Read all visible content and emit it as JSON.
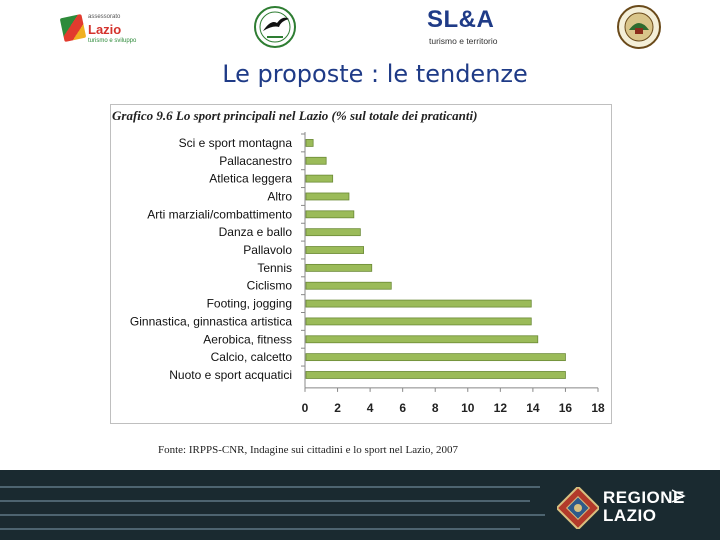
{
  "header": {
    "lazio_logo": {
      "small": "assessorato",
      "big": "Lazio",
      "sub": "turismo e sviluppo"
    },
    "sla_logo": {
      "big": "SL&A",
      "small": "turismo e territorio"
    }
  },
  "slide": {
    "title": "Le proposte : le tendenze",
    "chart_title": "Grafico 9.6 Lo sport principali nel Lazio (% sul totale dei praticanti)",
    "source": "Fonte: IRPPS-CNR, Indagine sui cittadini e lo sport nel Lazio, 2007"
  },
  "footer": {
    "line1": "REGIONE",
    "line2": "LAZIO"
  },
  "colors": {
    "title": "#1f3b87",
    "bar_fill": "#9bbb59",
    "bar_stroke": "#6b8a36",
    "footer_bg": "#1a2a30"
  },
  "chart_data": {
    "type": "bar",
    "orientation": "horizontal",
    "title": "Grafico 9.6 Lo sport principali nel Lazio (% sul totale dei praticanti)",
    "categories": [
      "Sci e sport montagna",
      "Pallacanestro",
      "Atletica leggera",
      "Altro",
      "Arti marziali/combattimento",
      "Danza e ballo",
      "Pallavolo",
      "Tennis",
      "Ciclismo",
      "Footing, jogging",
      "Ginnastica, ginnastica artistica",
      "Aerobica, fitness",
      "Calcio, calcetto",
      "Nuoto e sport acquatici"
    ],
    "values": [
      0.5,
      1.3,
      1.7,
      2.7,
      3.0,
      3.4,
      3.6,
      4.1,
      5.3,
      13.9,
      13.9,
      14.3,
      16.0,
      16.0
    ],
    "xlim": [
      0,
      18
    ],
    "xticks": [
      "0",
      "2",
      "4",
      "6",
      "8",
      "10",
      "12",
      "14",
      "16",
      "18"
    ],
    "grid": false
  }
}
